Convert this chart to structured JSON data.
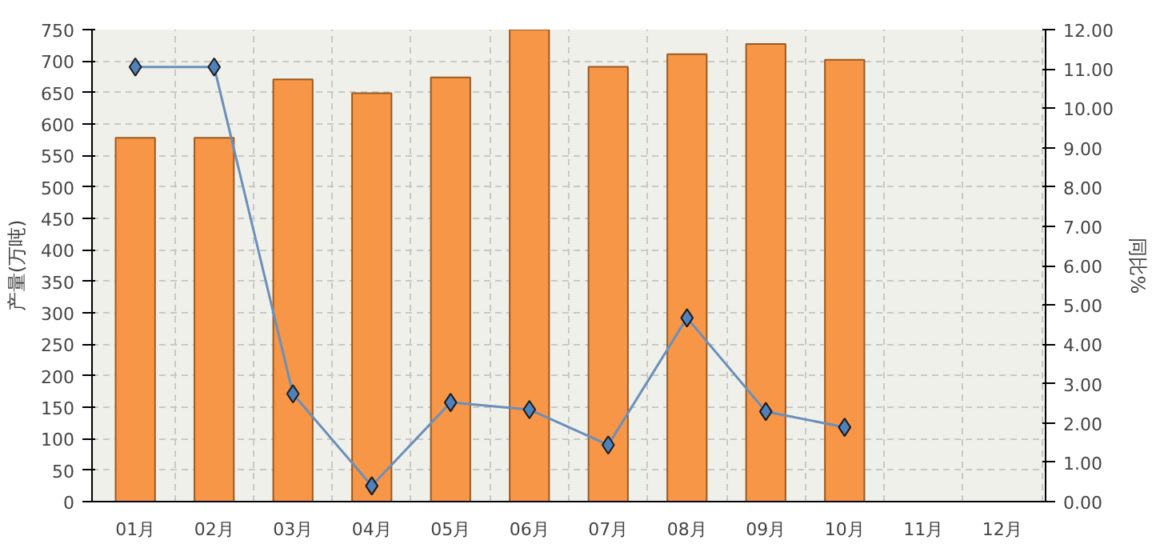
{
  "chart_data": {
    "type": "bar",
    "categories": [
      "01月",
      "02月",
      "03月",
      "04月",
      "05月",
      "06月",
      "07月",
      "08月",
      "09月",
      "10月",
      "11月",
      "12月"
    ],
    "ylabel": "产量(万吨)",
    "y2label": "同比%",
    "ylim": [
      0,
      750
    ],
    "yticks": [
      0,
      50,
      100,
      150,
      200,
      250,
      300,
      350,
      400,
      450,
      500,
      550,
      600,
      650,
      700,
      750
    ],
    "y2lim": [
      0,
      12
    ],
    "y2ticks": [
      {
        "value": 0,
        "label": "0.00"
      },
      {
        "value": 1,
        "label": "1.00"
      },
      {
        "value": 2,
        "label": "2.00"
      },
      {
        "value": 3,
        "label": "3.00"
      },
      {
        "value": 4,
        "label": "4.00"
      },
      {
        "value": 5,
        "label": "5.00"
      },
      {
        "value": 6,
        "label": "6.00"
      },
      {
        "value": 7,
        "label": "7.00"
      },
      {
        "value": 8,
        "label": "8.00"
      },
      {
        "value": 9,
        "label": "9.00"
      },
      {
        "value": 10,
        "label": "10.00"
      },
      {
        "value": 11,
        "label": "11.00"
      },
      {
        "value": 12,
        "label": "12.00"
      }
    ],
    "grid": true,
    "series": [
      {
        "color": "#f79646",
        "values": [
          578,
          578,
          671,
          649,
          674,
          750,
          691,
          711,
          727,
          702,
          null,
          null
        ]
      },
      {
        "type": "line",
        "axis": "y2",
        "color": "#6b8fba",
        "marker": "diamond",
        "values": [
          11.05,
          11.05,
          2.74,
          0.4,
          2.52,
          2.34,
          1.44,
          4.67,
          2.29,
          1.89,
          null,
          null
        ]
      }
    ]
  }
}
